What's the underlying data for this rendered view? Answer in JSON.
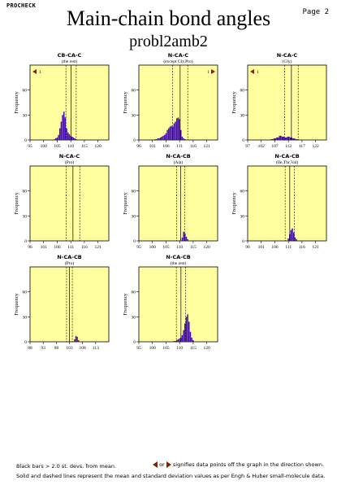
{
  "header": {
    "program": "PROCHECK",
    "page": "Page 2",
    "title": "Main-chain bond angles",
    "subtitle": "probl2amb2"
  },
  "footer": {
    "line1": "Black bars > 2.0 st. devs. from mean.",
    "or_text": "or",
    "line1_right": "signifies data points off the graph in the direction shown.",
    "line2": "Solid and dashed lines represent the mean and standard deviation values as per Engh & Huber small-molecule data."
  },
  "colors": {
    "panel_bg": "#ffffa0",
    "bar_main": "#4a0fb8",
    "bar_tail": "#8b2000",
    "offgraph_marker": "#8b2000"
  },
  "chart_data": [
    {
      "type": "bar",
      "title": "CB-CA-C",
      "subtitle": "(the rest)",
      "ylabel": "Frequency",
      "xlim": [
        95,
        124
      ],
      "ylim": [
        0,
        90
      ],
      "xticks": [
        95,
        100,
        105,
        110,
        115,
        120
      ],
      "yticks": [
        0,
        30,
        60
      ],
      "mean": 110.1,
      "sd_lines": [
        108.2,
        112.0
      ],
      "offgraph": {
        "left": 1,
        "right": null
      },
      "x": [
        104,
        104.5,
        105,
        105.5,
        106,
        106.5,
        107,
        107.5,
        108,
        108.5,
        109,
        109.5,
        110,
        110.5,
        111,
        111.5,
        112
      ],
      "values": [
        1,
        2,
        3,
        6,
        14,
        22,
        30,
        34,
        27,
        14,
        9,
        7,
        5,
        4,
        3,
        2,
        1
      ]
    },
    {
      "type": "bar",
      "title": "N-CA-C",
      "subtitle": "(except Gly,Pro)",
      "ylabel": "Frequency",
      "xlim": [
        96,
        125
      ],
      "ylim": [
        0,
        90
      ],
      "xticks": [
        96,
        101,
        106,
        111,
        116,
        121
      ],
      "yticks": [
        0,
        30,
        60
      ],
      "mean": 111.2,
      "sd_lines": [
        108.4,
        114.0
      ],
      "offgraph": {
        "left": null,
        "right": 1
      },
      "x": [
        102,
        102.5,
        103,
        103.5,
        104,
        104.5,
        105,
        105.5,
        106,
        106.5,
        107,
        107.5,
        108,
        108.5,
        109,
        109.5,
        110,
        110.5,
        111,
        111.5,
        112,
        112.5,
        113
      ],
      "values": [
        1,
        1,
        2,
        2,
        3,
        4,
        5,
        6,
        8,
        12,
        14,
        16,
        17,
        16,
        20,
        22,
        26,
        27,
        25,
        12,
        4,
        2,
        1
      ]
    },
    {
      "type": "bar",
      "title": "N-CA-C",
      "subtitle": "(Gly)",
      "ylabel": "Frequency",
      "xlim": [
        97,
        126
      ],
      "ylim": [
        0,
        90
      ],
      "xticks": [
        97,
        102,
        107,
        112,
        117,
        122
      ],
      "yticks": [
        0,
        30,
        60
      ],
      "mean": 113.1,
      "sd_lines": [
        110.6,
        115.6
      ],
      "offgraph": {
        "left": 1,
        "right": null
      },
      "x": [
        106,
        107,
        108,
        109,
        110,
        111,
        112,
        113,
        114,
        115
      ],
      "values": [
        1,
        2,
        3,
        5,
        4,
        3,
        4,
        3,
        2,
        1
      ]
    },
    {
      "type": "bar",
      "title": "N-CA-C",
      "subtitle": "(Pro)",
      "ylabel": "Frequency",
      "xlim": [
        96,
        125
      ],
      "ylim": [
        0,
        90
      ],
      "xticks": [
        96,
        101,
        106,
        111,
        116,
        121
      ],
      "yticks": [
        0,
        30,
        60
      ],
      "mean": 111.8,
      "sd_lines": [
        109.3,
        114.3
      ],
      "offgraph": {
        "left": null,
        "right": null
      },
      "x": [],
      "values": []
    },
    {
      "type": "bar",
      "title": "N-CA-CB",
      "subtitle": "(Ala)",
      "ylabel": "Frequency",
      "xlim": [
        95,
        124
      ],
      "ylim": [
        0,
        90
      ],
      "xticks": [
        95,
        100,
        105,
        110,
        115,
        120
      ],
      "yticks": [
        0,
        30,
        60
      ],
      "mean": 110.4,
      "sd_lines": [
        108.9,
        111.9
      ],
      "offgraph": {
        "left": null,
        "right": null
      },
      "x": [
        111,
        111.5,
        112,
        112.5,
        113
      ],
      "values": [
        4,
        11,
        9,
        5,
        2
      ]
    },
    {
      "type": "bar",
      "title": "N-CA-CB",
      "subtitle": "(Ile,Thr,Val)",
      "ylabel": "Frequency",
      "xlim": [
        96,
        125
      ],
      "ylim": [
        0,
        90
      ],
      "xticks": [
        96,
        101,
        106,
        111,
        116,
        121
      ],
      "yticks": [
        0,
        30,
        60
      ],
      "mean": 111.5,
      "sd_lines": [
        109.8,
        113.2
      ],
      "offgraph": {
        "left": null,
        "right": null
      },
      "x": [
        111,
        111.5,
        112,
        112.5,
        113,
        113.5,
        114
      ],
      "values": [
        3,
        8,
        13,
        15,
        10,
        4,
        2
      ]
    },
    {
      "type": "bar",
      "title": "N-CA-CB",
      "subtitle": "(Pro)",
      "ylabel": "Frequency",
      "xlim": [
        88,
        118
      ],
      "ylim": [
        0,
        90
      ],
      "xticks": [
        88,
        93,
        98,
        103,
        108,
        113
      ],
      "yticks": [
        0,
        30,
        60
      ],
      "mean": 103.0,
      "sd_lines": [
        101.9,
        104.1
      ],
      "offgraph": {
        "left": null,
        "right": null
      },
      "x": [
        105,
        105.5,
        106,
        106.5
      ],
      "values": [
        3,
        7,
        6,
        2
      ]
    },
    {
      "type": "bar",
      "title": "N-CA-CB",
      "subtitle": "(the rest)",
      "ylabel": "Frequency",
      "xlim": [
        95,
        124
      ],
      "ylim": [
        0,
        90
      ],
      "xticks": [
        95,
        100,
        105,
        110,
        115,
        120
      ],
      "yticks": [
        0,
        30,
        60
      ],
      "mean": 110.5,
      "sd_lines": [
        108.8,
        112.2
      ],
      "offgraph": {
        "left": null,
        "right": null
      },
      "x": [
        108,
        108.5,
        109,
        109.5,
        110,
        110.5,
        111,
        111.5,
        112,
        112.5,
        113,
        113.5,
        114,
        114.5,
        115
      ],
      "values": [
        1,
        1,
        2,
        3,
        4,
        5,
        8,
        14,
        22,
        30,
        33,
        24,
        12,
        5,
        2
      ]
    }
  ]
}
